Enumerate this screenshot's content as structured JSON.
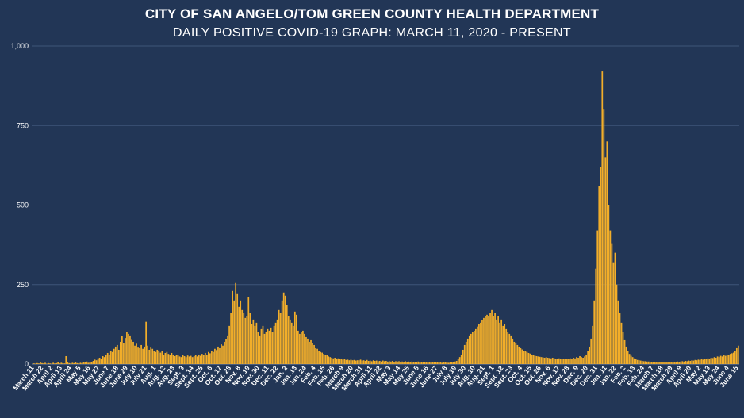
{
  "chart_data": {
    "type": "bar",
    "title": "CITY OF SAN ANGELO/TOM GREEN COUNTY HEALTH DEPARTMENT",
    "subtitle": "DAILY POSITIVE COVID-19 GRAPH: MARCH 11, 2020 - PRESENT",
    "xlabel": "",
    "ylabel": "",
    "ylim": [
      0,
      1000
    ],
    "yticks": [
      0,
      250,
      500,
      750,
      1000
    ],
    "ytick_labels": [
      "0",
      "250",
      "500",
      "750",
      "1,000"
    ],
    "grid": true,
    "bar_color": "#f2ae2a",
    "background_color": "#223656",
    "grid_color": "#3e5578",
    "start_date": "2020-03-11",
    "end_date": "2022-06-15",
    "x_tick_labels": [
      "March 11",
      "March 22",
      "April 2",
      "April 13",
      "April 24",
      "May 5",
      "May 16",
      "May 27",
      "June 7",
      "June 18",
      "June 29",
      "July 10",
      "July 21",
      "Aug. 1",
      "Aug. 12",
      "Aug. 23",
      "Sept. 3",
      "Sept. 14",
      "Sept. 25",
      "Oct. 6",
      "Oct. 17",
      "Oct. 28",
      "Nov. 8",
      "Nov. 19",
      "Nov. 30",
      "Dec. 11",
      "Dec. 22",
      "Jan. 2",
      "Jan. 13",
      "Jan. 24",
      "Feb. 4",
      "Feb. 15",
      "Feb. 26",
      "March 9",
      "March 20",
      "March 31",
      "April 11",
      "April 22",
      "May 3",
      "May 14",
      "May 25",
      "June 5",
      "June 16",
      "June 27",
      "July 8",
      "July 19",
      "July 30",
      "Aug. 10",
      "Aug. 21",
      "Sept. 1",
      "Sept. 12",
      "Sept. 23",
      "Oct. 4",
      "Oct. 15",
      "Oct. 26",
      "Nov. 6",
      "Nov. 17",
      "Nov. 28",
      "Dec. 9",
      "Dec. 20",
      "Dec. 31",
      "Jan. 11",
      "Jan. 22",
      "Feb. 2",
      "Feb. 13",
      "Feb. 24",
      "March 7",
      "March 18",
      "March 29",
      "April 9",
      "April 20",
      "May 2",
      "May 13",
      "May 24",
      "June 4",
      "June 15"
    ],
    "series": [
      {
        "values": [
          0,
          2,
          1,
          3,
          2,
          5,
          3,
          2,
          4,
          1,
          3,
          2,
          1,
          4,
          2,
          3,
          5,
          2,
          4,
          3,
          2,
          25,
          5,
          3,
          2,
          4,
          3,
          5,
          3,
          2,
          4,
          3,
          6,
          5,
          8,
          4,
          7,
          5,
          10,
          14,
          12,
          18,
          20,
          16,
          25,
          22,
          30,
          35,
          28,
          42,
          38,
          48,
          55,
          60,
          45,
          70,
          88,
          65,
          82,
          100,
          95,
          90,
          76,
          70,
          58,
          64,
          52,
          50,
          60,
          48,
          55,
          133,
          58,
          45,
          52,
          48,
          42,
          38,
          45,
          40,
          36,
          42,
          30,
          35,
          38,
          32,
          28,
          35,
          30,
          25,
          28,
          30,
          24,
          22,
          28,
          25,
          22,
          27,
          24,
          26,
          22,
          25,
          28,
          24,
          30,
          26,
          32,
          28,
          35,
          30,
          38,
          34,
          42,
          38,
          48,
          44,
          55,
          50,
          62,
          58,
          70,
          78,
          90,
          120,
          160,
          230,
          200,
          255,
          220,
          180,
          200,
          170,
          160,
          145,
          150,
          210,
          160,
          125,
          140,
          120,
          130,
          100,
          90,
          110,
          120,
          95,
          100,
          110,
          105,
          115,
          100,
          120,
          130,
          140,
          170,
          160,
          200,
          225,
          215,
          185,
          150,
          140,
          130,
          120,
          165,
          155,
          105,
          95,
          100,
          105,
          95,
          85,
          80,
          70,
          75,
          65,
          60,
          50,
          48,
          42,
          38,
          36,
          32,
          30,
          28,
          24,
          22,
          20,
          18,
          20,
          16,
          18,
          15,
          16,
          14,
          15,
          13,
          14,
          12,
          14,
          12,
          13,
          11,
          12,
          12,
          14,
          11,
          12,
          10,
          13,
          10,
          11,
          9,
          12,
          10,
          11,
          9,
          10,
          8,
          11,
          9,
          10,
          8,
          9,
          8,
          10,
          7,
          9,
          8,
          9,
          7,
          8,
          7,
          9,
          6,
          8,
          7,
          8,
          6,
          7,
          6,
          8,
          6,
          7,
          5,
          7,
          6,
          6,
          5,
          7,
          5,
          6,
          5,
          6,
          5,
          6,
          4,
          6,
          5,
          5,
          4,
          6,
          5,
          6,
          8,
          10,
          15,
          22,
          30,
          45,
          60,
          70,
          80,
          90,
          95,
          100,
          105,
          110,
          118,
          125,
          130,
          138,
          145,
          150,
          155,
          150,
          160,
          170,
          150,
          160,
          140,
          150,
          130,
          140,
          120,
          125,
          110,
          100,
          95,
          90,
          80,
          70,
          65,
          60,
          55,
          50,
          46,
          42,
          40,
          38,
          35,
          33,
          30,
          28,
          26,
          25,
          24,
          23,
          22,
          21,
          20,
          22,
          20,
          19,
          18,
          20,
          18,
          17,
          16,
          18,
          17,
          16,
          15,
          17,
          16,
          15,
          18,
          16,
          20,
          18,
          22,
          20,
          25,
          22,
          20,
          24,
          30,
          40,
          55,
          80,
          120,
          200,
          300,
          420,
          560,
          620,
          920,
          800,
          650,
          700,
          500,
          420,
          380,
          320,
          350,
          250,
          200,
          160,
          130,
          100,
          75,
          55,
          40,
          32,
          26,
          22,
          18,
          15,
          13,
          12,
          11,
          10,
          9,
          9,
          8,
          8,
          7,
          7,
          6,
          7,
          6,
          6,
          5,
          6,
          5,
          5,
          6,
          5,
          6,
          6,
          7,
          6,
          7,
          8,
          7,
          8,
          9,
          8,
          10,
          9,
          11,
          10,
          12,
          11,
          13,
          12,
          14,
          13,
          15,
          14,
          16,
          15,
          18,
          17,
          20,
          19,
          22,
          20,
          24,
          22,
          26,
          24,
          28,
          26,
          30,
          28,
          32,
          34,
          36,
          40,
          50,
          58
        ]
      }
    ]
  }
}
